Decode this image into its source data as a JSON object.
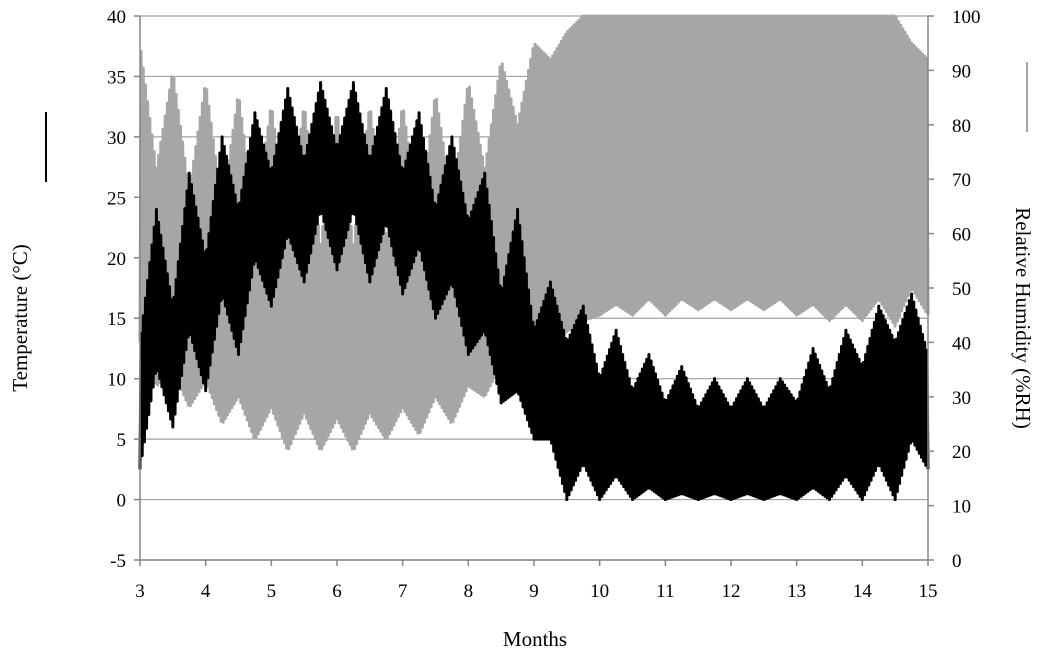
{
  "chart_data": {
    "type": "line",
    "title": "",
    "xlabel": "Months",
    "ylabel_left": "Temperature (°C)",
    "ylabel_right": "Relative Humidity    (%RH)",
    "x_range": [
      3,
      15
    ],
    "x_ticks": [
      "3",
      "4",
      "5",
      "6",
      "7",
      "8",
      "9",
      "10",
      "11",
      "12",
      "13",
      "14",
      "15"
    ],
    "y_left_range": [
      -5,
      40
    ],
    "y_left_ticks": [
      "-5",
      "0",
      "5",
      "10",
      "15",
      "20",
      "25",
      "30",
      "35",
      "40"
    ],
    "y_right_range": [
      0,
      100
    ],
    "y_right_ticks": [
      "0",
      "10",
      "20",
      "30",
      "40",
      "50",
      "60",
      "70",
      "80",
      "90",
      "100"
    ],
    "grid": "horizontal",
    "legend": "short line markers beside each axis title",
    "series": [
      {
        "axis": "left",
        "color": "#000000",
        "line_width": 3,
        "daily_cycles_per_month": 30,
        "envelope": {
          "month": [
            3,
            3.25,
            3.5,
            3.75,
            4,
            4.25,
            4.5,
            4.75,
            5,
            5.25,
            5.5,
            5.75,
            6,
            6.25,
            6.5,
            6.75,
            7,
            7.25,
            7.5,
            7.75,
            8,
            8.25,
            8.5,
            8.75,
            9,
            9.25,
            9.5,
            9.75,
            10,
            10.25,
            10.5,
            10.75,
            11,
            11.25,
            11.5,
            11.75,
            12,
            12.25,
            12.5,
            12.75,
            13,
            13.25,
            13.5,
            13.75,
            14,
            14.25,
            14.5,
            14.75,
            15
          ],
          "min": [
            2.5,
            11,
            6,
            14,
            9,
            17,
            12,
            20,
            16,
            22,
            18,
            24,
            19,
            24,
            18,
            23,
            17,
            21,
            15,
            18,
            12,
            14,
            8,
            9,
            5,
            5,
            0,
            3,
            0,
            2,
            0,
            1,
            0,
            0.5,
            0,
            0.5,
            0,
            0.5,
            0,
            0.5,
            0,
            1,
            0,
            2,
            0,
            3,
            0,
            5,
            2.5
          ],
          "max": [
            13,
            24,
            16,
            27,
            20,
            30,
            24,
            32,
            27,
            34,
            28,
            34.5,
            29,
            34.5,
            28,
            34,
            27,
            32,
            24,
            30,
            23,
            27,
            17,
            24,
            14,
            18,
            13,
            16,
            10,
            14,
            9,
            12,
            8,
            11,
            7.5,
            10,
            7.5,
            10,
            7.5,
            10,
            8,
            12.5,
            9,
            14,
            11,
            16,
            13,
            17,
            12
          ]
        }
      },
      {
        "axis": "right",
        "color": "#a6a6a6",
        "line_width": 3,
        "daily_cycles_per_month": 30,
        "envelope": {
          "month": [
            3,
            3.25,
            3.5,
            3.75,
            4,
            4.25,
            4.5,
            4.75,
            5,
            5.25,
            5.5,
            5.75,
            6,
            6.25,
            6.5,
            6.75,
            7,
            7.25,
            7.5,
            7.75,
            8,
            8.25,
            8.5,
            8.75,
            9,
            9.25,
            9.5,
            9.75,
            10,
            10.25,
            10.5,
            10.75,
            11,
            11.25,
            11.5,
            11.75,
            12,
            12.25,
            12.5,
            12.75,
            13,
            13.25,
            13.5,
            13.75,
            14,
            14.25,
            14.5,
            14.75,
            15
          ],
          "min": [
            40,
            32,
            35,
            28,
            33,
            25,
            30,
            22,
            28,
            20,
            27,
            20,
            26,
            20,
            27,
            22,
            28,
            23,
            30,
            25,
            32,
            30,
            36,
            33,
            40,
            38,
            42,
            44,
            45,
            47,
            45,
            48,
            45,
            48,
            46,
            48,
            46,
            48,
            46,
            48,
            45,
            47,
            44,
            47,
            44,
            48,
            43,
            50,
            45
          ],
          "max": [
            95,
            72,
            90,
            68,
            88,
            65,
            86,
            62,
            84,
            60,
            84,
            58,
            83,
            58,
            84,
            60,
            84,
            62,
            86,
            66,
            88,
            72,
            92,
            80,
            95,
            92,
            97,
            100,
            100,
            100,
            100,
            100,
            100,
            100,
            100,
            100,
            100,
            100,
            100,
            100,
            100,
            100,
            100,
            100,
            100,
            100,
            100,
            95,
            92
          ]
        }
      }
    ]
  }
}
